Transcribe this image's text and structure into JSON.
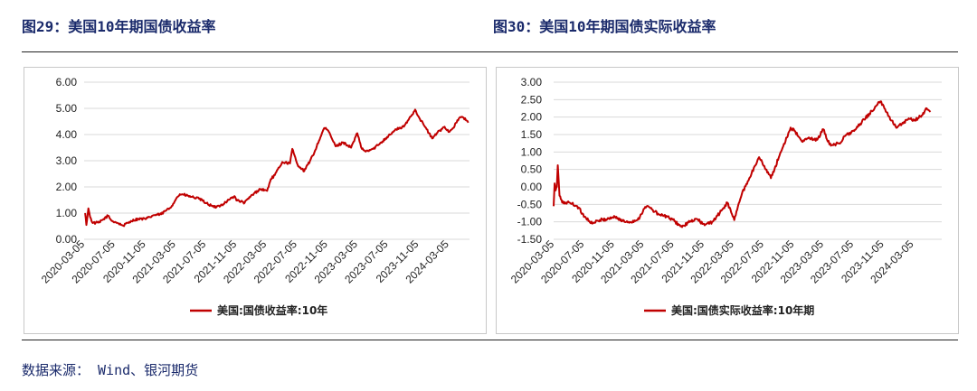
{
  "figures": {
    "left_title": "图29：美国10年期国债收益率",
    "right_title": "图30：美国10年期国债实际收益率"
  },
  "source": "数据来源： Wind、银河期货",
  "colors": {
    "line": "#c00000",
    "title": "#1a2a6b",
    "grid": "#d9d9d9"
  },
  "chart_data": [
    {
      "type": "line",
      "title": "",
      "series": [
        {
          "name": "美国:国债收益率:10年",
          "color": "#c00000",
          "points": [
            [
              "2020-03-05",
              1.0
            ],
            [
              "2020-03-10",
              0.55
            ],
            [
              "2020-03-18",
              1.18
            ],
            [
              "2020-03-25",
              0.85
            ],
            [
              "2020-04-05",
              0.62
            ],
            [
              "2020-05-01",
              0.64
            ],
            [
              "2020-06-05",
              0.9
            ],
            [
              "2020-06-20",
              0.7
            ],
            [
              "2020-07-05",
              0.66
            ],
            [
              "2020-08-05",
              0.52
            ],
            [
              "2020-09-05",
              0.7
            ],
            [
              "2020-10-05",
              0.78
            ],
            [
              "2020-11-05",
              0.78
            ],
            [
              "2020-11-20",
              0.85
            ],
            [
              "2020-12-05",
              0.92
            ],
            [
              "2021-01-05",
              0.96
            ],
            [
              "2021-01-20",
              1.08
            ],
            [
              "2021-02-10",
              1.2
            ],
            [
              "2021-03-05",
              1.55
            ],
            [
              "2021-03-20",
              1.72
            ],
            [
              "2021-04-05",
              1.7
            ],
            [
              "2021-05-05",
              1.62
            ],
            [
              "2021-06-05",
              1.55
            ],
            [
              "2021-07-05",
              1.38
            ],
            [
              "2021-08-05",
              1.22
            ],
            [
              "2021-09-05",
              1.32
            ],
            [
              "2021-10-05",
              1.52
            ],
            [
              "2021-10-25",
              1.65
            ],
            [
              "2021-11-05",
              1.48
            ],
            [
              "2021-12-05",
              1.4
            ],
            [
              "2022-01-05",
              1.7
            ],
            [
              "2022-02-05",
              1.92
            ],
            [
              "2022-03-05",
              1.85
            ],
            [
              "2022-03-20",
              2.3
            ],
            [
              "2022-04-05",
              2.45
            ],
            [
              "2022-05-05",
              2.95
            ],
            [
              "2022-06-05",
              2.9
            ],
            [
              "2022-06-14",
              3.45
            ],
            [
              "2022-07-05",
              2.85
            ],
            [
              "2022-08-01",
              2.6
            ],
            [
              "2022-09-05",
              3.2
            ],
            [
              "2022-10-20",
              4.25
            ],
            [
              "2022-11-05",
              4.15
            ],
            [
              "2022-12-05",
              3.55
            ],
            [
              "2023-01-05",
              3.7
            ],
            [
              "2023-02-05",
              3.5
            ],
            [
              "2023-03-02",
              4.05
            ],
            [
              "2023-03-20",
              3.45
            ],
            [
              "2023-04-05",
              3.35
            ],
            [
              "2023-05-05",
              3.45
            ],
            [
              "2023-06-05",
              3.7
            ],
            [
              "2023-07-05",
              3.95
            ],
            [
              "2023-08-05",
              4.2
            ],
            [
              "2023-09-05",
              4.3
            ],
            [
              "2023-10-20",
              4.95
            ],
            [
              "2023-11-05",
              4.65
            ],
            [
              "2023-12-05",
              4.2
            ],
            [
              "2023-12-27",
              3.85
            ],
            [
              "2024-01-15",
              4.05
            ],
            [
              "2024-02-15",
              4.3
            ],
            [
              "2024-03-05",
              4.1
            ],
            [
              "2024-03-20",
              4.25
            ],
            [
              "2024-04-15",
              4.65
            ],
            [
              "2024-05-01",
              4.65
            ],
            [
              "2024-05-20",
              4.45
            ]
          ]
        }
      ],
      "ylim": [
        0,
        6
      ],
      "y_ticks": [
        "0.00",
        "1.00",
        "2.00",
        "3.00",
        "4.00",
        "5.00",
        "6.00"
      ],
      "y_tick_values": [
        0,
        1,
        2,
        3,
        4,
        5,
        6
      ],
      "x_ticks": [
        "2020-03-05",
        "2020-07-05",
        "2020-11-05",
        "2021-03-05",
        "2021-07-05",
        "2021-11-05",
        "2022-03-05",
        "2022-07-05",
        "2022-11-05",
        "2023-03-05",
        "2023-07-05",
        "2023-11-05",
        "2024-03-05"
      ],
      "x_range": [
        "2020-03-01",
        "2024-05-25"
      ],
      "grid": "horizontal",
      "legend": "bottom-center"
    },
    {
      "type": "line",
      "title": "",
      "series": [
        {
          "name": "美国:国债实际收益率:10年期",
          "color": "#c00000",
          "points": [
            [
              "2020-03-01",
              -0.55
            ],
            [
              "2020-03-05",
              0.1
            ],
            [
              "2020-03-09",
              -0.1
            ],
            [
              "2020-03-14",
              0.0
            ],
            [
              "2020-03-18",
              0.62
            ],
            [
              "2020-03-25",
              -0.25
            ],
            [
              "2020-04-05",
              -0.45
            ],
            [
              "2020-05-05",
              -0.45
            ],
            [
              "2020-06-05",
              -0.55
            ],
            [
              "2020-07-05",
              -0.85
            ],
            [
              "2020-08-05",
              -1.05
            ],
            [
              "2020-09-05",
              -0.95
            ],
            [
              "2020-10-05",
              -0.92
            ],
            [
              "2020-11-05",
              -0.85
            ],
            [
              "2020-12-05",
              -0.98
            ],
            [
              "2021-01-05",
              -1.0
            ],
            [
              "2021-02-05",
              -0.95
            ],
            [
              "2021-03-05",
              -0.62
            ],
            [
              "2021-03-20",
              -0.55
            ],
            [
              "2021-04-05",
              -0.65
            ],
            [
              "2021-05-05",
              -0.8
            ],
            [
              "2021-06-05",
              -0.85
            ],
            [
              "2021-07-05",
              -0.98
            ],
            [
              "2021-08-05",
              -1.15
            ],
            [
              "2021-09-05",
              -1.0
            ],
            [
              "2021-10-05",
              -0.92
            ],
            [
              "2021-11-05",
              -1.1
            ],
            [
              "2021-12-05",
              -1.0
            ],
            [
              "2022-01-05",
              -0.75
            ],
            [
              "2022-02-05",
              -0.45
            ],
            [
              "2022-03-05",
              -0.95
            ],
            [
              "2022-03-20",
              -0.55
            ],
            [
              "2022-04-05",
              -0.2
            ],
            [
              "2022-05-05",
              0.25
            ],
            [
              "2022-06-14",
              0.85
            ],
            [
              "2022-07-05",
              0.6
            ],
            [
              "2022-08-01",
              0.25
            ],
            [
              "2022-09-05",
              0.9
            ],
            [
              "2022-10-20",
              1.7
            ],
            [
              "2022-11-05",
              1.6
            ],
            [
              "2022-12-05",
              1.3
            ],
            [
              "2023-01-05",
              1.4
            ],
            [
              "2023-02-05",
              1.35
            ],
            [
              "2023-03-02",
              1.65
            ],
            [
              "2023-03-20",
              1.3
            ],
            [
              "2023-04-05",
              1.2
            ],
            [
              "2023-05-05",
              1.25
            ],
            [
              "2023-06-05",
              1.5
            ],
            [
              "2023-07-05",
              1.6
            ],
            [
              "2023-08-05",
              1.85
            ],
            [
              "2023-09-05",
              2.1
            ],
            [
              "2023-10-20",
              2.45
            ],
            [
              "2023-11-05",
              2.25
            ],
            [
              "2023-12-05",
              1.9
            ],
            [
              "2023-12-27",
              1.7
            ],
            [
              "2024-01-15",
              1.8
            ],
            [
              "2024-02-15",
              1.95
            ],
            [
              "2024-03-05",
              1.9
            ],
            [
              "2024-04-05",
              2.05
            ],
            [
              "2024-04-25",
              2.25
            ],
            [
              "2024-05-10",
              2.15
            ]
          ]
        }
      ],
      "ylim": [
        -1.5,
        3
      ],
      "y_ticks": [
        "-1.50",
        "-1.00",
        "-0.50",
        "0.00",
        "0.50",
        "1.00",
        "1.50",
        "2.00",
        "2.50",
        "3.00"
      ],
      "y_tick_values": [
        -1.5,
        -1,
        -0.5,
        0,
        0.5,
        1,
        1.5,
        2,
        2.5,
        3
      ],
      "x_ticks": [
        "2020-03-05",
        "2020-07-05",
        "2020-11-05",
        "2021-03-05",
        "2021-07-05",
        "2021-11-05",
        "2022-03-05",
        "2022-07-05",
        "2022-11-05",
        "2023-03-05",
        "2023-07-05",
        "2023-11-05",
        "2024-03-05"
      ],
      "x_range": [
        "2020-03-01",
        "2024-06-25"
      ],
      "grid": "horizontal",
      "legend": "bottom-center"
    }
  ]
}
